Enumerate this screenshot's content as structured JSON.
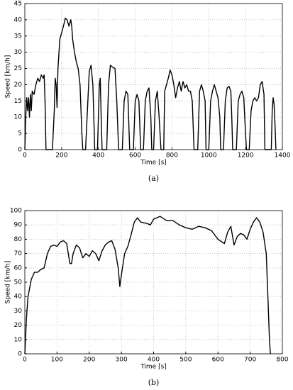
{
  "chart_data": [
    {
      "type": "line",
      "caption": "(a)",
      "xlabel": "Time [s]",
      "ylabel": "Speed [km/h]",
      "color": "#000000",
      "grid": true,
      "xlim": [
        0,
        1400
      ],
      "xticks": [
        0,
        200,
        400,
        600,
        800,
        1000,
        1200,
        1400
      ],
      "ylim": [
        0,
        45
      ],
      "yticks": [
        0,
        5,
        10,
        15,
        20,
        25,
        30,
        35,
        40,
        45
      ],
      "x": [
        0,
        5,
        10,
        15,
        20,
        25,
        30,
        35,
        40,
        50,
        60,
        70,
        80,
        90,
        100,
        105,
        110,
        115,
        150,
        160,
        165,
        170,
        175,
        180,
        190,
        200,
        210,
        220,
        230,
        240,
        250,
        255,
        260,
        270,
        280,
        290,
        300,
        310,
        315,
        330,
        340,
        350,
        360,
        370,
        380,
        395,
        405,
        410,
        415,
        420,
        445,
        455,
        465,
        475,
        490,
        500,
        510,
        530,
        540,
        550,
        560,
        570,
        590,
        600,
        610,
        620,
        630,
        645,
        655,
        665,
        675,
        685,
        690,
        700,
        710,
        720,
        730,
        740,
        755,
        760,
        770,
        780,
        790,
        800,
        810,
        820,
        830,
        840,
        850,
        860,
        870,
        880,
        890,
        900,
        910,
        920,
        940,
        950,
        960,
        970,
        980,
        985,
        1000,
        1010,
        1020,
        1030,
        1040,
        1050,
        1060,
        1065,
        1080,
        1090,
        1100,
        1110,
        1120,
        1125,
        1130,
        1150,
        1160,
        1170,
        1180,
        1190,
        1200,
        1205,
        1220,
        1230,
        1240,
        1250,
        1260,
        1270,
        1280,
        1290,
        1300,
        1305,
        1340,
        1345,
        1350,
        1355,
        1360,
        1365
      ],
      "values": [
        0,
        10,
        16,
        12,
        16,
        10,
        17,
        12,
        18,
        17,
        20,
        22,
        21,
        23,
        22,
        23,
        15,
        0,
        0,
        12,
        22,
        20,
        13,
        25,
        34,
        36,
        38,
        40.5,
        40,
        38,
        40,
        38,
        34,
        30,
        27,
        25,
        20,
        5,
        0,
        0,
        12,
        24,
        26,
        20,
        0,
        0,
        20,
        22,
        10,
        0,
        0,
        20,
        26,
        25.5,
        25,
        15,
        0,
        0,
        15,
        18,
        17,
        0,
        0,
        15,
        17,
        15,
        0,
        0,
        15,
        18,
        19,
        10,
        0,
        0,
        15,
        18,
        10,
        0,
        0,
        18,
        20,
        22,
        24.5,
        23,
        20,
        16,
        19,
        21,
        18,
        21,
        19,
        20,
        18,
        18,
        15,
        0,
        0,
        18,
        20,
        18,
        15,
        0,
        0,
        15,
        18,
        20,
        18,
        16,
        10,
        0,
        0,
        15,
        19,
        19.5,
        18,
        10,
        0,
        0,
        15,
        17,
        18,
        16,
        5,
        0,
        0,
        12,
        15,
        16,
        15,
        16,
        20,
        21,
        17,
        0,
        0,
        12,
        16,
        14,
        8,
        0
      ]
    },
    {
      "type": "line",
      "caption": "(b)",
      "xlabel": "Time [s]",
      "ylabel": "Speed [km/h]",
      "color": "#000000",
      "grid": true,
      "xlim": [
        0,
        800
      ],
      "xticks": [
        0,
        100,
        200,
        300,
        400,
        500,
        600,
        700,
        800
      ],
      "ylim": [
        0,
        100
      ],
      "yticks": [
        0,
        10,
        20,
        30,
        40,
        50,
        60,
        70,
        80,
        90,
        100
      ],
      "x": [
        0,
        5,
        10,
        20,
        30,
        40,
        50,
        60,
        70,
        80,
        90,
        100,
        110,
        120,
        130,
        140,
        145,
        150,
        160,
        170,
        180,
        190,
        200,
        210,
        220,
        230,
        240,
        250,
        260,
        270,
        280,
        290,
        295,
        300,
        310,
        320,
        330,
        340,
        350,
        360,
        380,
        390,
        400,
        420,
        440,
        460,
        480,
        500,
        520,
        540,
        560,
        580,
        600,
        620,
        630,
        640,
        650,
        660,
        670,
        680,
        690,
        700,
        710,
        720,
        730,
        740,
        750,
        755,
        760,
        763
      ],
      "values": [
        0,
        25,
        40,
        52,
        57,
        57,
        59,
        60,
        70,
        75,
        76,
        75,
        78,
        79,
        77,
        63,
        63,
        70,
        76,
        74,
        67,
        70,
        68,
        72,
        70,
        65,
        72,
        76,
        78,
        79,
        73,
        60,
        47,
        55,
        70,
        75,
        83,
        92,
        95,
        92,
        91,
        90,
        94,
        96,
        93,
        93,
        90,
        88,
        87,
        89,
        88,
        86,
        80,
        77,
        85,
        89,
        76,
        82,
        84,
        83,
        80,
        87,
        92,
        95,
        92,
        85,
        70,
        40,
        10,
        0
      ]
    }
  ]
}
